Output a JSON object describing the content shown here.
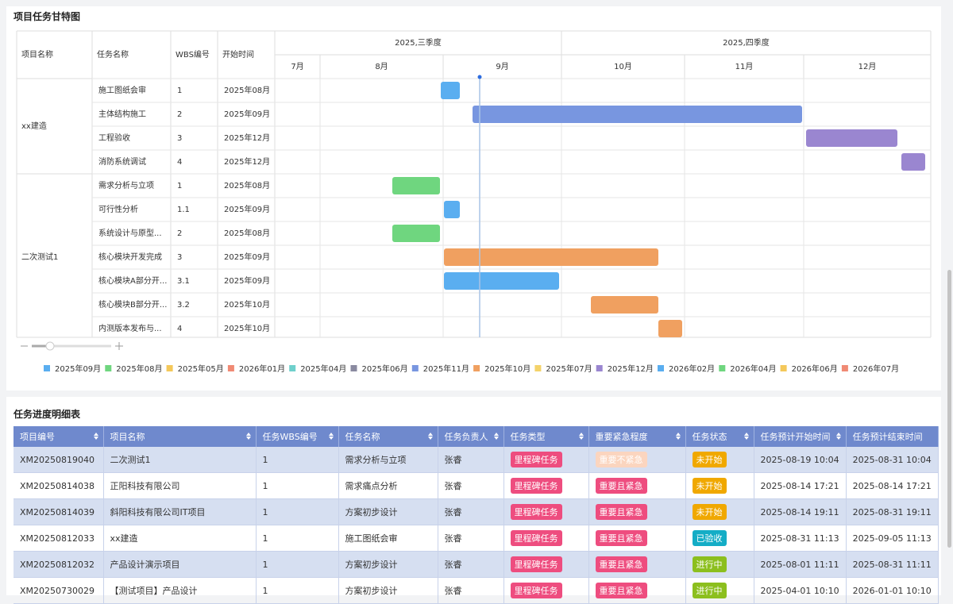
{
  "gantt": {
    "title": "项目任务甘特图",
    "columns": [
      "项目名称",
      "任务名称",
      "WBS编号",
      "开始时间"
    ],
    "quarters": [
      "2025,三季度",
      "2025,四季度"
    ],
    "months": [
      "7月",
      "8月",
      "9月",
      "10月",
      "11月",
      "12月"
    ],
    "projects": [
      {
        "name": "xx建造",
        "tasks": [
          {
            "name": "施工图纸会审",
            "wbs": "1",
            "start": "2025年08月"
          },
          {
            "name": "主体结构施工",
            "wbs": "2",
            "start": "2025年09月"
          },
          {
            "name": "工程验收",
            "wbs": "3",
            "start": "2025年12月"
          },
          {
            "name": "消防系统调试",
            "wbs": "4",
            "start": "2025年12月"
          }
        ]
      },
      {
        "name": "二次测试1",
        "tasks": [
          {
            "name": "需求分析与立项",
            "wbs": "1",
            "start": "2025年08月"
          },
          {
            "name": "可行性分析",
            "wbs": "1.1",
            "start": "2025年09月"
          },
          {
            "name": "系统设计与原型...",
            "wbs": "2",
            "start": "2025年08月"
          },
          {
            "name": "核心模块开发完成",
            "wbs": "3",
            "start": "2025年09月"
          },
          {
            "name": "核心模块A部分开...",
            "wbs": "3.1",
            "start": "2025年09月"
          },
          {
            "name": "核心模块B部分开...",
            "wbs": "3.2",
            "start": "2025年10月"
          },
          {
            "name": "内测版本发布与...",
            "wbs": "4",
            "start": "2025年10月"
          }
        ]
      }
    ],
    "legend": [
      {
        "label": "2025年09月",
        "color": "#5aaef0"
      },
      {
        "label": "2025年08月",
        "color": "#6fd67f"
      },
      {
        "label": "2025年05月",
        "color": "#f4c85a"
      },
      {
        "label": "2026年01月",
        "color": "#f08a74"
      },
      {
        "label": "2025年04月",
        "color": "#6fd0cc"
      },
      {
        "label": "2025年06月",
        "color": "#8a8aa0"
      },
      {
        "label": "2025年11月",
        "color": "#7896e0"
      },
      {
        "label": "2025年10月",
        "color": "#f0a060"
      },
      {
        "label": "2025年07月",
        "color": "#f4d36a"
      },
      {
        "label": "2025年12月",
        "color": "#9a86d0"
      },
      {
        "label": "2026年02月",
        "color": "#5aaef0"
      },
      {
        "label": "2026年04月",
        "color": "#6fd67f"
      },
      {
        "label": "2026年06月",
        "color": "#f4c85a"
      },
      {
        "label": "2026年07月",
        "color": "#f08a74"
      }
    ]
  },
  "table": {
    "title": "任务进度明细表",
    "headers": [
      "项目编号",
      "项目名称",
      "任务WBS编号",
      "任务名称",
      "任务负责人",
      "任务类型",
      "重要紧急程度",
      "任务状态",
      "任务预计开始时间",
      "任务预计结束时间"
    ],
    "rows": [
      [
        "XM20250819040",
        "二次测试1",
        "1",
        "需求分析与立项",
        "张睿",
        "里程碑任务",
        "重要不紧急",
        "未开始",
        "2025-08-19 10:04",
        "2025-08-31 10:04"
      ],
      [
        "XM20250814038",
        "正阳科技有限公司",
        "1",
        "需求痛点分析",
        "张睿",
        "里程碑任务",
        "重要且紧急",
        "未开始",
        "2025-08-14 17:21",
        "2025-08-14 17:21"
      ],
      [
        "XM20250814039",
        "斜阳科技有限公司IT项目",
        "1",
        "方案初步设计",
        "张睿",
        "里程碑任务",
        "重要且紧急",
        "未开始",
        "2025-08-14 19:11",
        "2025-08-31 19:11"
      ],
      [
        "XM20250812033",
        "xx建造",
        "1",
        "施工图纸会审",
        "张睿",
        "里程碑任务",
        "重要且紧急",
        "已验收",
        "2025-08-31 11:13",
        "2025-09-05 11:13"
      ],
      [
        "XM20250812032",
        "产品设计演示项目",
        "1",
        "方案初步设计",
        "张睿",
        "里程碑任务",
        "重要且紧急",
        "进行中",
        "2025-08-01 11:11",
        "2025-08-31 11:11"
      ],
      [
        "XM20250730029",
        "【测试项目】产品设计",
        "1",
        "方案初步设计",
        "张睿",
        "里程碑任务",
        "重要且紧急",
        "进行中",
        "2025-04-01 10:10",
        "2026-01-01 10:10"
      ]
    ],
    "tag_colors": {
      "里程碑任务": "#ee4d7f",
      "重要不紧急": "#fbd5bf",
      "重要且紧急": "#ee4d7f",
      "未开始": "#f0a800",
      "已验收": "#14adc6",
      "进行中": "#8cbf1e"
    }
  }
}
